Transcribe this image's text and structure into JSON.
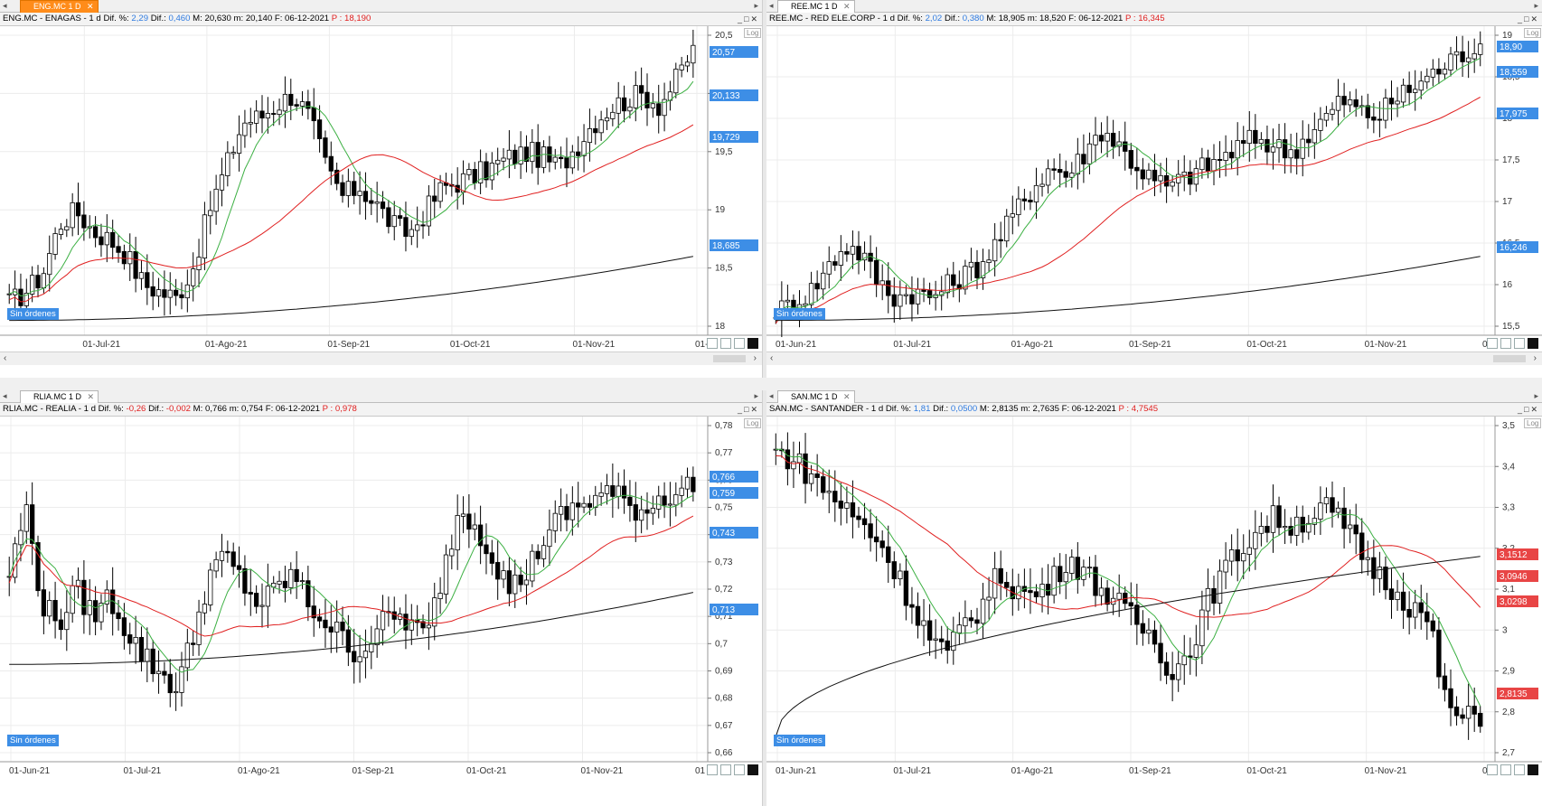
{
  "panels": [
    {
      "tab_label": "ENG.MC 1 D",
      "symbol": "ENG.MC - ENAGAS - ",
      "interval": "1 d",
      "dif_pct_label": "Dif. %:",
      "dif_pct": "2,29",
      "dif_label": "Dif.:",
      "dif": "0,460",
      "max": "M: 20,630",
      "min": "m: 20,140",
      "date": "F: 06-12-2021",
      "price": "P : 18,190",
      "orders": "Sin órdenes",
      "log": "Log",
      "y_ticks": [
        "20,5",
        "20",
        "19,5",
        "19",
        "18,5",
        "18"
      ],
      "x_ticks": [
        "01-Jul-21",
        "01-Ago-21",
        "01-Sep-21",
        "01-Oct-21",
        "01-Nov-21",
        "01-"
      ],
      "price_tags": [
        {
          "text": "20,57",
          "color": "#3d8ee6"
        },
        {
          "text": "20,133",
          "color": "#3d8ee6"
        },
        {
          "text": "19,729",
          "color": "#3d8ee6"
        },
        {
          "text": "18,685",
          "color": "#3d8ee6"
        }
      ]
    },
    {
      "tab_label": "REE.MC 1 D",
      "symbol": "REE.MC - RED ELE.CORP - ",
      "interval": "1 d",
      "dif_pct_label": "Dif. %:",
      "dif_pct": "2,02",
      "dif_label": "Dif.:",
      "dif": "0,380",
      "max": "M: 18,905",
      "min": "m: 18,520",
      "date": "F: 06-12-2021",
      "price": "P : 16,345",
      "orders": "Sin órdenes",
      "log": "Log",
      "y_ticks": [
        "19",
        "18,5",
        "18",
        "17,5",
        "17",
        "16,5",
        "16",
        "15,5"
      ],
      "x_ticks": [
        "01-Jun-21",
        "01-Jul-21",
        "01-Ago-21",
        "01-Sep-21",
        "01-Oct-21",
        "01-Nov-21",
        "01"
      ],
      "price_tags": [
        {
          "text": "18,90",
          "color": "#3d8ee6"
        },
        {
          "text": "18,559",
          "color": "#3d8ee6"
        },
        {
          "text": "17,975",
          "color": "#3d8ee6"
        },
        {
          "text": "16,246",
          "color": "#3d8ee6"
        }
      ]
    },
    {
      "tab_label": "RLIA.MC 1 D",
      "symbol": "RLIA.MC - REALIA - ",
      "interval": "1 d",
      "dif_pct_label": "Dif. %:",
      "dif_pct": "-0,26",
      "dif_label": "Dif.:",
      "dif": "-0,002",
      "max": "M: 0,766",
      "min": "m: 0,754",
      "date": "F: 06-12-2021",
      "price": "P : 0,978",
      "orders": "Sin órdenes",
      "log": "Log",
      "y_ticks": [
        "0,78",
        "0,77",
        "0,76",
        "0,75",
        "0,74",
        "0,73",
        "0,72",
        "0,71",
        "0,7",
        "0,69",
        "0,68",
        "0,67",
        "0,66"
      ],
      "x_ticks": [
        "01-Jun-21",
        "01-Jul-21",
        "01-Ago-21",
        "01-Sep-21",
        "01-Oct-21",
        "01-Nov-21",
        "01"
      ],
      "price_tags": [
        {
          "text": "0,766",
          "color": "#3d8ee6"
        },
        {
          "text": "0,759",
          "color": "#3d8ee6"
        },
        {
          "text": "0,743",
          "color": "#3d8ee6"
        },
        {
          "text": "0,713",
          "color": "#3d8ee6"
        }
      ]
    },
    {
      "tab_label": "SAN.MC 1 D",
      "symbol": "SAN.MC - SANTANDER - ",
      "interval": "1 d",
      "dif_pct_label": "Dif. %:",
      "dif_pct": "1,81",
      "dif_label": "Dif.:",
      "dif": "0,0500",
      "max": "M: 2,8135",
      "min": "m: 2,7635",
      "date": "F: 06-12-2021",
      "price": "P : 4,7545",
      "orders": "Sin órdenes",
      "log": "Log",
      "y_ticks": [
        "3,5",
        "3,4",
        "3,3",
        "3,2",
        "3,1",
        "3",
        "2,9",
        "2,8",
        "2,7"
      ],
      "x_ticks": [
        "01-Jun-21",
        "01-Jul-21",
        "01-Ago-21",
        "01-Sep-21",
        "01-Oct-21",
        "01-Nov-21",
        "01"
      ],
      "price_tags": [
        {
          "text": "3,1512",
          "color": "#e84545"
        },
        {
          "text": "3,0946",
          "color": "#e84545"
        },
        {
          "text": "3,0298",
          "color": "#e84545"
        },
        {
          "text": "2,8135",
          "color": "#e84545"
        }
      ]
    }
  ],
  "colors": {
    "sma_fast": "#3cb043",
    "sma_mid": "#e02020",
    "sma_slow": "#111111",
    "candle": "#000000",
    "tag_blue": "#3d8ee6",
    "tag_red": "#e84545"
  }
}
